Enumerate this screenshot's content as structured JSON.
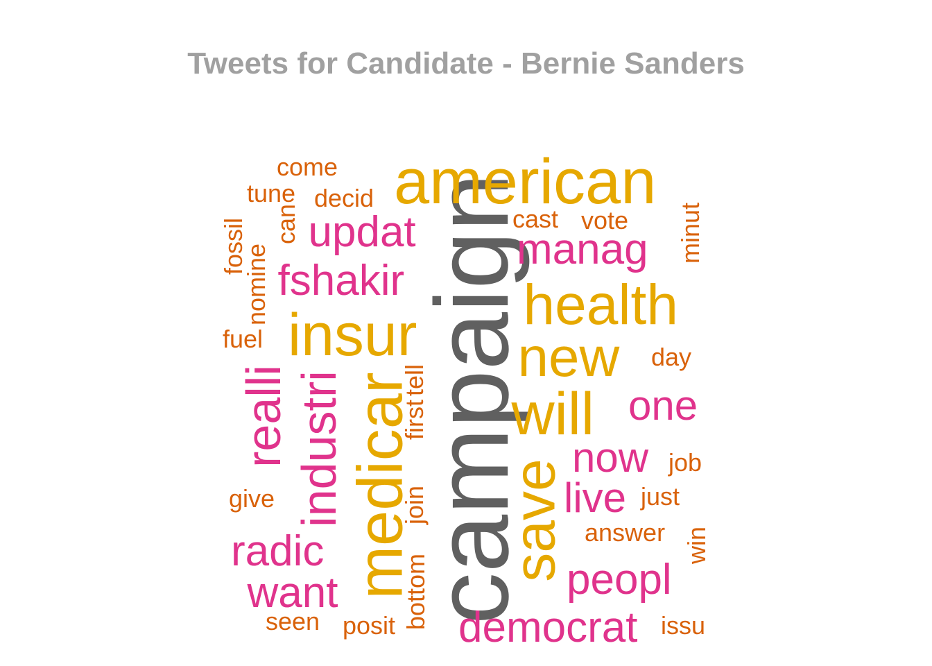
{
  "title": "Tweets for Candidate - Bernie Sanders",
  "colors": {
    "top": "#606060",
    "high": "#e6a800",
    "mid": "#e0338c",
    "low": "#d9620a"
  },
  "words": [
    {
      "text": "campaign",
      "tier": "top",
      "rotated": true
    },
    {
      "text": "american",
      "tier": "high",
      "rotated": false
    },
    {
      "text": "health",
      "tier": "high",
      "rotated": false
    },
    {
      "text": "insur",
      "tier": "high",
      "rotated": false
    },
    {
      "text": "new",
      "tier": "high",
      "rotated": false
    },
    {
      "text": "medicar",
      "tier": "high",
      "rotated": true
    },
    {
      "text": "will",
      "tier": "high",
      "rotated": false
    },
    {
      "text": "save",
      "tier": "high",
      "rotated": true
    },
    {
      "text": "updat",
      "tier": "mid",
      "rotated": false
    },
    {
      "text": "manag",
      "tier": "mid",
      "rotated": false
    },
    {
      "text": "fshakir",
      "tier": "mid",
      "rotated": false
    },
    {
      "text": "realli",
      "tier": "mid",
      "rotated": true
    },
    {
      "text": "industri",
      "tier": "mid",
      "rotated": true
    },
    {
      "text": "one",
      "tier": "mid",
      "rotated": false
    },
    {
      "text": "now",
      "tier": "mid",
      "rotated": false
    },
    {
      "text": "live",
      "tier": "mid",
      "rotated": false
    },
    {
      "text": "radic",
      "tier": "mid",
      "rotated": false
    },
    {
      "text": "want",
      "tier": "mid",
      "rotated": false
    },
    {
      "text": "peopl",
      "tier": "mid",
      "rotated": false
    },
    {
      "text": "democrat",
      "tier": "mid",
      "rotated": false
    },
    {
      "text": "come",
      "tier": "low",
      "rotated": false
    },
    {
      "text": "tune",
      "tier": "low",
      "rotated": false
    },
    {
      "text": "decid",
      "tier": "low",
      "rotated": false
    },
    {
      "text": "cast",
      "tier": "low",
      "rotated": false
    },
    {
      "text": "vote",
      "tier": "low",
      "rotated": false
    },
    {
      "text": "can",
      "tier": "low",
      "rotated": true
    },
    {
      "text": "fossil",
      "tier": "low",
      "rotated": true
    },
    {
      "text": "nomine",
      "tier": "low",
      "rotated": true
    },
    {
      "text": "minut",
      "tier": "low",
      "rotated": true
    },
    {
      "text": "fuel",
      "tier": "low",
      "rotated": false
    },
    {
      "text": "day",
      "tier": "low",
      "rotated": false
    },
    {
      "text": "tell",
      "tier": "low",
      "rotated": true
    },
    {
      "text": "first",
      "tier": "low",
      "rotated": true
    },
    {
      "text": "job",
      "tier": "low",
      "rotated": false
    },
    {
      "text": "give",
      "tier": "low",
      "rotated": false
    },
    {
      "text": "join",
      "tier": "low",
      "rotated": true
    },
    {
      "text": "just",
      "tier": "low",
      "rotated": false
    },
    {
      "text": "answer",
      "tier": "low",
      "rotated": false
    },
    {
      "text": "win",
      "tier": "low",
      "rotated": true
    },
    {
      "text": "bottom",
      "tier": "low",
      "rotated": true
    },
    {
      "text": "seen",
      "tier": "low",
      "rotated": false
    },
    {
      "text": "posit",
      "tier": "low",
      "rotated": false
    },
    {
      "text": "issu",
      "tier": "low",
      "rotated": false
    }
  ]
}
